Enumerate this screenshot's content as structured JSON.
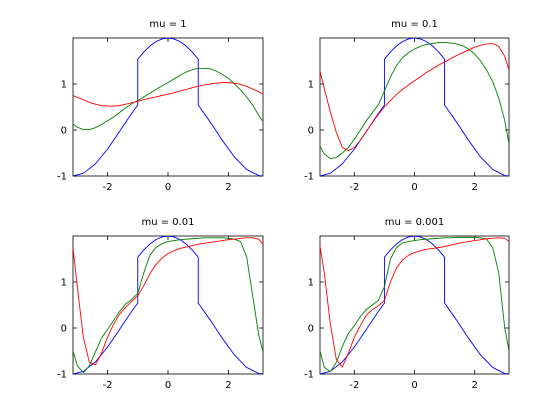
{
  "chart_data": [
    {
      "type": "line",
      "title": "mu = 1",
      "xlabel": "",
      "ylabel": "",
      "xlim": [
        -3.14159,
        3.14159
      ],
      "ylim": [
        -1,
        2
      ],
      "xticks": [
        "-2",
        "0",
        "2"
      ],
      "xtick_values": [
        -2,
        0,
        2
      ],
      "yticks": [
        "-1",
        "0",
        "1"
      ],
      "ytick_values": [
        -1,
        0,
        1
      ],
      "grid": false,
      "series": [
        {
          "color": "#0000ff",
          "x": [
            -3.1416,
            -2.8,
            -2.4,
            -2.0,
            -1.6,
            -1.2,
            -1.0,
            -1.0,
            -0.8,
            -0.6,
            -0.4,
            -0.2,
            0.0,
            0.2,
            0.4,
            0.6,
            0.8,
            1.0,
            1.0,
            1.4,
            1.8,
            2.2,
            2.6,
            3.0,
            3.1416
          ],
          "y": [
            -1.0,
            -0.942,
            -0.737,
            -0.416,
            -0.029,
            0.362,
            0.54,
            1.54,
            1.697,
            1.825,
            1.921,
            1.98,
            2.0,
            1.98,
            1.921,
            1.825,
            1.697,
            1.54,
            0.54,
            0.17,
            -0.227,
            -0.589,
            -0.857,
            -0.99,
            -1.0
          ]
        },
        {
          "color": "#008000",
          "x": [
            -3.1416,
            -3.0,
            -2.8,
            -2.6,
            -2.4,
            -2.2,
            -2.0,
            -1.8,
            -1.6,
            -1.4,
            -1.2,
            -1.0,
            -0.8,
            -0.6,
            -0.4,
            -0.2,
            0.0,
            0.2,
            0.4,
            0.6,
            0.8,
            1.0,
            1.2,
            1.4,
            1.6,
            1.8,
            2.0,
            2.2,
            2.4,
            2.6,
            2.8,
            3.0,
            3.1416
          ],
          "y": [
            0.13,
            0.06,
            0.01,
            0.01,
            0.05,
            0.12,
            0.2,
            0.28,
            0.38,
            0.48,
            0.57,
            0.64,
            0.72,
            0.8,
            0.88,
            0.96,
            1.03,
            1.11,
            1.19,
            1.26,
            1.31,
            1.34,
            1.34,
            1.33,
            1.28,
            1.21,
            1.12,
            1.0,
            0.87,
            0.72,
            0.54,
            0.32,
            0.18
          ]
        },
        {
          "color": "#ff0000",
          "x": [
            -3.1416,
            -3.0,
            -2.8,
            -2.6,
            -2.4,
            -2.2,
            -2.0,
            -1.8,
            -1.6,
            -1.4,
            -1.2,
            -1.0,
            -0.8,
            -0.6,
            -0.4,
            -0.2,
            0.0,
            0.2,
            0.4,
            0.6,
            0.8,
            1.0,
            1.2,
            1.4,
            1.6,
            1.8,
            2.0,
            2.2,
            2.4,
            2.6,
            2.8,
            3.0,
            3.1416
          ],
          "y": [
            0.75,
            0.71,
            0.66,
            0.6,
            0.56,
            0.53,
            0.52,
            0.52,
            0.53,
            0.56,
            0.59,
            0.62,
            0.66,
            0.69,
            0.72,
            0.75,
            0.78,
            0.81,
            0.85,
            0.88,
            0.92,
            0.95,
            0.98,
            1.0,
            1.02,
            1.03,
            1.03,
            1.02,
            0.99,
            0.95,
            0.89,
            0.83,
            0.78
          ]
        }
      ]
    },
    {
      "type": "line",
      "title": "mu = 0.1",
      "xlabel": "",
      "ylabel": "",
      "xlim": [
        -3.14159,
        3.14159
      ],
      "ylim": [
        -1,
        2
      ],
      "xticks": [
        "-2",
        "0",
        "2"
      ],
      "xtick_values": [
        -2,
        0,
        2
      ],
      "yticks": [
        "-1",
        "0",
        "1"
      ],
      "ytick_values": [
        -1,
        0,
        1
      ],
      "grid": false,
      "series": [
        {
          "color": "#0000ff",
          "x": [
            -3.1416,
            -2.8,
            -2.4,
            -2.0,
            -1.6,
            -1.2,
            -1.0,
            -1.0,
            -0.8,
            -0.6,
            -0.4,
            -0.2,
            0.0,
            0.2,
            0.4,
            0.6,
            0.8,
            1.0,
            1.0,
            1.4,
            1.8,
            2.2,
            2.6,
            3.0,
            3.1416
          ],
          "y": [
            -1.0,
            -0.942,
            -0.737,
            -0.416,
            -0.029,
            0.362,
            0.54,
            1.54,
            1.697,
            1.825,
            1.921,
            1.98,
            2.0,
            1.98,
            1.921,
            1.825,
            1.697,
            1.54,
            0.54,
            0.17,
            -0.227,
            -0.589,
            -0.857,
            -0.99,
            -1.0
          ]
        },
        {
          "color": "#008000",
          "x": [
            -3.1416,
            -3.0,
            -2.8,
            -2.6,
            -2.4,
            -2.2,
            -2.0,
            -1.8,
            -1.6,
            -1.4,
            -1.2,
            -1.0,
            -0.8,
            -0.6,
            -0.4,
            -0.2,
            0.0,
            0.2,
            0.4,
            0.6,
            0.8,
            1.0,
            1.2,
            1.4,
            1.6,
            1.8,
            2.0,
            2.2,
            2.4,
            2.6,
            2.8,
            3.0,
            3.1416
          ],
          "y": [
            -0.35,
            -0.52,
            -0.62,
            -0.6,
            -0.5,
            -0.38,
            -0.2,
            0.0,
            0.2,
            0.38,
            0.55,
            0.85,
            1.15,
            1.4,
            1.57,
            1.68,
            1.76,
            1.82,
            1.86,
            1.88,
            1.9,
            1.9,
            1.89,
            1.87,
            1.83,
            1.76,
            1.65,
            1.5,
            1.3,
            1.05,
            0.7,
            0.2,
            -0.3
          ]
        },
        {
          "color": "#ff0000",
          "x": [
            -3.1416,
            -3.0,
            -2.8,
            -2.6,
            -2.4,
            -2.2,
            -2.0,
            -1.8,
            -1.6,
            -1.4,
            -1.2,
            -1.0,
            -0.8,
            -0.6,
            -0.4,
            -0.2,
            0.0,
            0.2,
            0.4,
            0.6,
            0.8,
            1.0,
            1.2,
            1.4,
            1.6,
            1.8,
            2.0,
            2.2,
            2.4,
            2.6,
            2.8,
            3.0,
            3.1416
          ],
          "y": [
            1.28,
            0.9,
            0.4,
            -0.05,
            -0.38,
            -0.45,
            -0.38,
            -0.22,
            -0.03,
            0.16,
            0.34,
            0.5,
            0.64,
            0.77,
            0.88,
            0.98,
            1.07,
            1.16,
            1.25,
            1.33,
            1.41,
            1.48,
            1.55,
            1.62,
            1.68,
            1.74,
            1.8,
            1.84,
            1.87,
            1.88,
            1.82,
            1.6,
            1.3
          ]
        }
      ]
    },
    {
      "type": "line",
      "title": "mu = 0.01",
      "xlabel": "",
      "ylabel": "",
      "xlim": [
        -3.14159,
        3.14159
      ],
      "ylim": [
        -1,
        2
      ],
      "xticks": [
        "-2",
        "0",
        "2"
      ],
      "xtick_values": [
        -2,
        0,
        2
      ],
      "yticks": [
        "-1",
        "0",
        "1"
      ],
      "ytick_values": [
        -1,
        0,
        1
      ],
      "grid": false,
      "series": [
        {
          "color": "#0000ff",
          "x": [
            -3.1416,
            -2.8,
            -2.4,
            -2.0,
            -1.6,
            -1.2,
            -1.0,
            -1.0,
            -0.8,
            -0.6,
            -0.4,
            -0.2,
            0.0,
            0.2,
            0.4,
            0.6,
            0.8,
            1.0,
            1.0,
            1.4,
            1.8,
            2.2,
            2.6,
            3.0,
            3.1416
          ],
          "y": [
            -1.0,
            -0.942,
            -0.737,
            -0.416,
            -0.029,
            0.362,
            0.54,
            1.54,
            1.697,
            1.825,
            1.921,
            1.98,
            2.0,
            1.98,
            1.921,
            1.825,
            1.697,
            1.54,
            0.54,
            0.17,
            -0.227,
            -0.589,
            -0.857,
            -0.99,
            -1.0
          ]
        },
        {
          "color": "#008000",
          "x": [
            -3.1416,
            -3.0,
            -2.8,
            -2.6,
            -2.4,
            -2.2,
            -2.0,
            -1.8,
            -1.6,
            -1.4,
            -1.2,
            -1.0,
            -0.8,
            -0.6,
            -0.4,
            -0.2,
            0.0,
            0.2,
            0.4,
            0.6,
            0.8,
            1.0,
            1.2,
            1.4,
            1.6,
            1.8,
            2.0,
            2.2,
            2.4,
            2.6,
            2.8,
            3.0,
            3.1416
          ],
          "y": [
            -0.5,
            -0.82,
            -0.97,
            -0.82,
            -0.52,
            -0.22,
            -0.03,
            0.16,
            0.36,
            0.52,
            0.62,
            0.75,
            1.2,
            1.58,
            1.75,
            1.83,
            1.88,
            1.9,
            1.92,
            1.93,
            1.94,
            1.95,
            1.96,
            1.96,
            1.96,
            1.96,
            1.95,
            1.93,
            1.88,
            1.55,
            0.7,
            -0.15,
            -0.52
          ]
        },
        {
          "color": "#ff0000",
          "x": [
            -3.1416,
            -3.0,
            -2.8,
            -2.6,
            -2.4,
            -2.2,
            -2.0,
            -1.8,
            -1.6,
            -1.4,
            -1.2,
            -1.0,
            -0.8,
            -0.6,
            -0.4,
            -0.2,
            0.0,
            0.2,
            0.4,
            0.6,
            0.8,
            1.0,
            1.2,
            1.4,
            1.6,
            1.8,
            2.0,
            2.2,
            2.4,
            2.6,
            2.8,
            3.0,
            3.1416
          ],
          "y": [
            1.75,
            0.9,
            -0.2,
            -0.75,
            -0.8,
            -0.55,
            -0.2,
            0.08,
            0.3,
            0.45,
            0.58,
            0.7,
            0.92,
            1.18,
            1.38,
            1.52,
            1.62,
            1.68,
            1.73,
            1.76,
            1.79,
            1.82,
            1.84,
            1.86,
            1.88,
            1.9,
            1.92,
            1.93,
            1.95,
            1.96,
            1.96,
            1.93,
            1.82
          ]
        }
      ]
    },
    {
      "type": "line",
      "title": "mu = 0.001",
      "xlabel": "",
      "ylabel": "",
      "xlim": [
        -3.14159,
        3.14159
      ],
      "ylim": [
        -1,
        2
      ],
      "xticks": [
        "-2",
        "0",
        "2"
      ],
      "xtick_values": [
        -2,
        0,
        2
      ],
      "yticks": [
        "-1",
        "0",
        "1"
      ],
      "ytick_values": [
        -1,
        0,
        1
      ],
      "grid": false,
      "series": [
        {
          "color": "#0000ff",
          "x": [
            -3.1416,
            -2.8,
            -2.4,
            -2.0,
            -1.6,
            -1.2,
            -1.0,
            -1.0,
            -0.8,
            -0.6,
            -0.4,
            -0.2,
            0.0,
            0.2,
            0.4,
            0.6,
            0.8,
            1.0,
            1.0,
            1.4,
            1.8,
            2.2,
            2.6,
            3.0,
            3.1416
          ],
          "y": [
            -1.0,
            -0.942,
            -0.737,
            -0.416,
            -0.029,
            0.362,
            0.54,
            1.54,
            1.697,
            1.825,
            1.921,
            1.98,
            2.0,
            1.98,
            1.921,
            1.825,
            1.697,
            1.54,
            0.54,
            0.17,
            -0.227,
            -0.589,
            -0.857,
            -0.99,
            -1.0
          ]
        },
        {
          "color": "#008000",
          "x": [
            -3.1416,
            -3.0,
            -2.8,
            -2.6,
            -2.4,
            -2.2,
            -2.0,
            -1.8,
            -1.6,
            -1.4,
            -1.2,
            -1.0,
            -0.8,
            -0.6,
            -0.4,
            -0.2,
            0.0,
            0.2,
            0.4,
            0.6,
            0.8,
            1.0,
            1.2,
            1.4,
            1.6,
            1.8,
            2.0,
            2.2,
            2.4,
            2.6,
            2.8,
            3.0,
            3.1416
          ],
          "y": [
            -0.5,
            -0.85,
            -0.95,
            -0.75,
            -0.4,
            -0.12,
            0.05,
            0.25,
            0.4,
            0.5,
            0.6,
            0.9,
            1.5,
            1.75,
            1.85,
            1.88,
            1.9,
            1.92,
            1.93,
            1.94,
            1.95,
            1.96,
            1.96,
            1.97,
            1.97,
            1.97,
            1.97,
            1.96,
            1.93,
            1.75,
            1.2,
            0.0,
            -0.5
          ]
        },
        {
          "color": "#ff0000",
          "x": [
            -3.1416,
            -3.0,
            -2.8,
            -2.6,
            -2.4,
            -2.2,
            -2.0,
            -1.8,
            -1.6,
            -1.4,
            -1.2,
            -1.0,
            -0.8,
            -0.6,
            -0.4,
            -0.2,
            0.0,
            0.2,
            0.4,
            0.6,
            0.8,
            1.0,
            1.2,
            1.4,
            1.6,
            1.8,
            2.0,
            2.2,
            2.4,
            2.6,
            2.8,
            3.0,
            3.1416
          ],
          "y": [
            1.78,
            1.2,
            0.1,
            -0.68,
            -0.85,
            -0.55,
            -0.2,
            0.05,
            0.28,
            0.4,
            0.48,
            0.6,
            1.0,
            1.3,
            1.48,
            1.58,
            1.64,
            1.68,
            1.71,
            1.73,
            1.75,
            1.77,
            1.8,
            1.83,
            1.86,
            1.88,
            1.9,
            1.92,
            1.94,
            1.95,
            1.96,
            1.95,
            1.88
          ]
        }
      ]
    }
  ]
}
